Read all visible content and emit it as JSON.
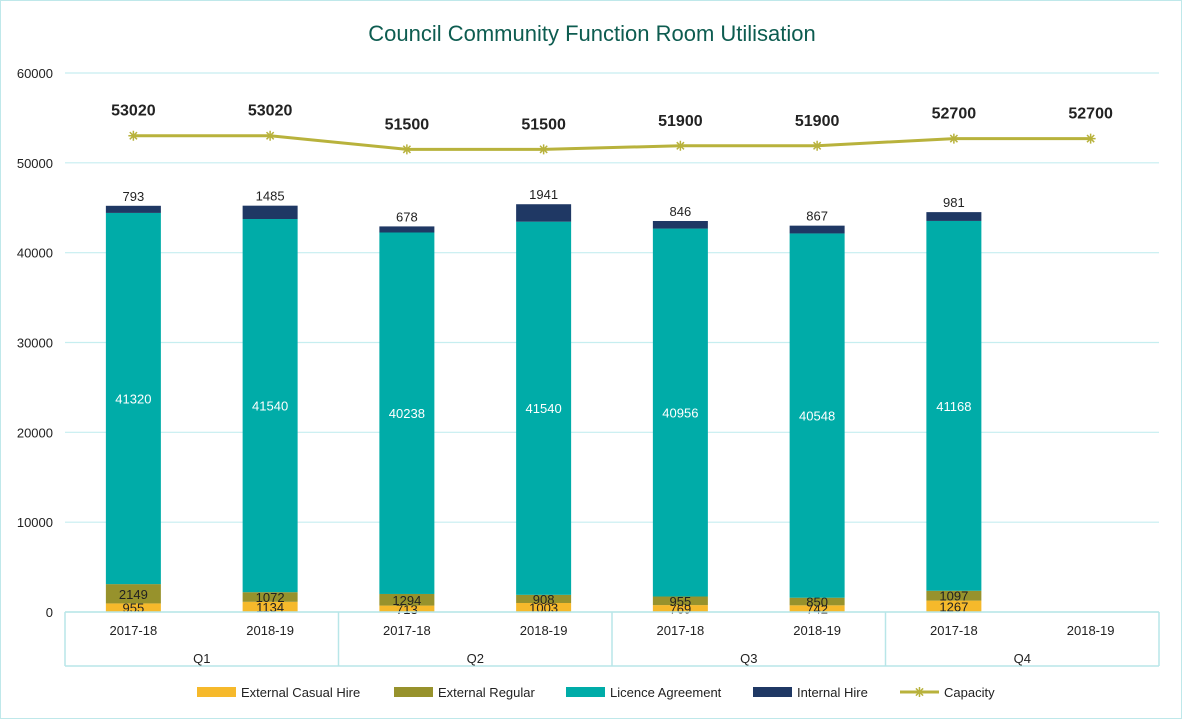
{
  "chart_data": {
    "type": "bar",
    "title": "Council Community Function Room Utilisation",
    "xlabel": "",
    "ylabel": "",
    "ylim": [
      0,
      60000
    ],
    "yticks": [
      0,
      10000,
      20000,
      30000,
      40000,
      50000,
      60000
    ],
    "grid": true,
    "legend_position": "bottom",
    "groups": [
      "Q1",
      "Q2",
      "Q3",
      "Q4"
    ],
    "categories": [
      "2017-18",
      "2018-19",
      "2017-18",
      "2018-19",
      "2017-18",
      "2018-19",
      "2017-18",
      "2018-19"
    ],
    "series": [
      {
        "name": "External Casual Hire",
        "type": "bar",
        "color": "#f6b92b",
        "values": [
          955,
          1134,
          713,
          1003,
          769,
          742,
          1267,
          null
        ]
      },
      {
        "name": "External Regular",
        "type": "bar",
        "color": "#97922c",
        "values": [
          2149,
          1072,
          1294,
          908,
          955,
          850,
          1097,
          null
        ]
      },
      {
        "name": "Licence Agreement",
        "type": "bar",
        "color": "#00aca8",
        "values": [
          41320,
          41540,
          40238,
          41540,
          40956,
          40548,
          41168,
          null
        ]
      },
      {
        "name": "Internal Hire",
        "type": "bar",
        "color": "#1f3864",
        "values": [
          793,
          1485,
          678,
          1941,
          846,
          867,
          981,
          null
        ]
      },
      {
        "name": "Capacity",
        "type": "line",
        "color": "#b8b23c",
        "values": [
          53020,
          53020,
          51500,
          51500,
          51900,
          51900,
          52700,
          52700
        ]
      }
    ]
  }
}
